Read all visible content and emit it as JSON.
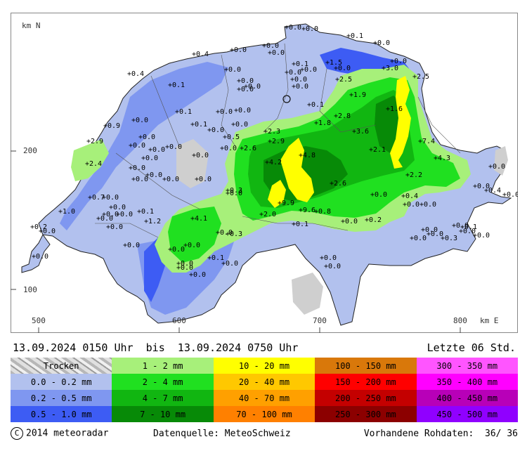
{
  "map": {
    "north_label": "km N",
    "east_label": "km E",
    "y_ticks": [
      "200",
      "100"
    ],
    "x_ticks": [
      "500",
      "600",
      "700",
      "800"
    ],
    "values": [
      "0.0",
      "0.0",
      "0.1",
      "0.0",
      "0.4",
      "0.0",
      "0.0",
      "0.0",
      "0.0",
      "0.0",
      "0.0",
      "0.1",
      "0.0",
      "1.5",
      "0.0",
      "3.0",
      "2.5",
      "0.4",
      "0.1",
      "0.0",
      "0.0",
      "0.0",
      "0.0",
      "2.5",
      "0.0",
      "0.1",
      "1.9",
      "1.6",
      "0.0",
      "0.0",
      "0.1",
      "0.0",
      "0.0",
      "0.0",
      "0.1",
      "0.9",
      "0.0",
      "0.0",
      "2.8",
      "1.8",
      "3.6",
      "0.0",
      "0.0",
      "0.0",
      "0.0",
      "2.3",
      "2.9",
      "0.5",
      "2.6",
      "0.0",
      "7.4",
      "4.2",
      "2.1",
      "4.3",
      "2.9",
      "4.8",
      "2.4",
      "0.0",
      "0.0",
      "2.2",
      "0.0",
      "0.0",
      "0.0",
      "0.0",
      "0.0",
      "0.0",
      "0.4",
      "0.0",
      "0.0",
      "0.3",
      "9.9",
      "2.6",
      "0.0",
      "0.7",
      "0.0",
      "0.4",
      "0.0",
      "0.0",
      "0.0",
      "0.1",
      "9.6",
      "0.0",
      "1.0",
      "0.0",
      "0.0",
      "0.8",
      "0.0",
      "0.2",
      "0.2",
      "1.2",
      "4.1",
      "2.0",
      "0.1",
      "0.0",
      "0.0",
      "0.3",
      "0.0",
      "0.0",
      "0.1",
      "0.0",
      "0.0",
      "0.0",
      "0.3",
      "0.0",
      "0.0",
      "0.0",
      "0.0",
      "0.0",
      "0.0",
      "0.1",
      "0.0",
      "0.0",
      "0.0",
      "0.0",
      "0.0"
    ]
  },
  "period": {
    "text": "13.09.2024 0150 Uhr  bis  13.09.2024 0750 Uhr",
    "last": "Letzte 06 Std."
  },
  "legend": {
    "rows": [
      [
        {
          "label": "Trocken",
          "color": "#cfcfcf"
        },
        {
          "label": "1 - 2 mm",
          "color": "#a7f07a"
        },
        {
          "label": "10 - 20 mm",
          "color": "#ffff00"
        },
        {
          "label": "100 - 150 mm",
          "color": "#d9780a"
        },
        {
          "label": "300 - 350 mm",
          "color": "#ff55ff"
        }
      ],
      [
        {
          "label": "0.0 - 0.2 mm",
          "color": "#b2c1ee"
        },
        {
          "label": "2 - 4 mm",
          "color": "#20e020"
        },
        {
          "label": "20 - 40 mm",
          "color": "#ffc800"
        },
        {
          "label": "150 - 200 mm",
          "color": "#ff0000"
        },
        {
          "label": "350 - 400 mm",
          "color": "#ff00ff"
        }
      ],
      [
        {
          "label": "0.2 - 0.5 mm",
          "color": "#7f97f0"
        },
        {
          "label": "4 - 7 mm",
          "color": "#11b611"
        },
        {
          "label": "40 - 70 mm",
          "color": "#ffa000"
        },
        {
          "label": "200 - 250 mm",
          "color": "#c40000"
        },
        {
          "label": "400 - 450 mm",
          "color": "#b800b8"
        }
      ],
      [
        {
          "label": "0.5 - 1.0 mm",
          "color": "#3d5cf4"
        },
        {
          "label": "7 - 10 mm",
          "color": "#078a07"
        },
        {
          "label": "70 - 100 mm",
          "color": "#ff8000"
        },
        {
          "label": "250 - 300 mm",
          "color": "#8c0000"
        },
        {
          "label": "450 - 500 mm",
          "color": "#9000ff"
        }
      ]
    ]
  },
  "footer": {
    "copyright_symbol": "C",
    "copyright": "2014 meteoradar",
    "source": "Datenquelle: MeteoSchweiz",
    "raw_data": "Vorhandene Rohdaten:  36/ 36"
  }
}
